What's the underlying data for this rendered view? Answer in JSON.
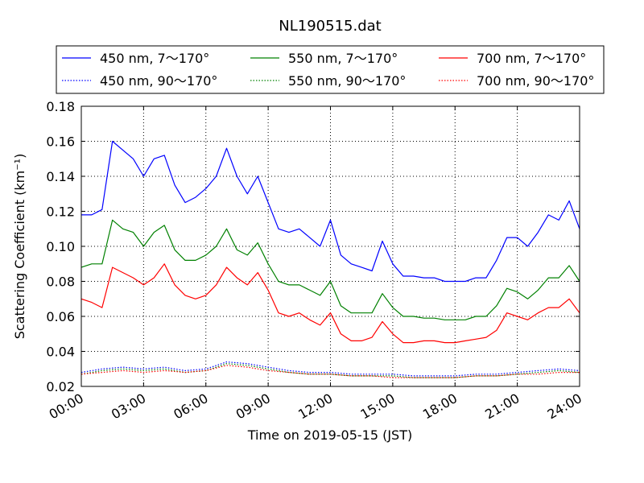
{
  "chart_data": {
    "type": "line",
    "title": "NL190515.dat",
    "xlabel": "Time on 2019-05-15 (JST)",
    "ylabel": "Scattering Coefficient (km⁻¹)",
    "xlim": [
      0,
      24
    ],
    "ylim": [
      0.02,
      0.18
    ],
    "x_ticks": [
      "00:00",
      "03:00",
      "06:00",
      "09:00",
      "12:00",
      "15:00",
      "18:00",
      "21:00",
      "24:00"
    ],
    "y_ticks": [
      "0.02",
      "0.04",
      "0.06",
      "0.08",
      "0.10",
      "0.12",
      "0.14",
      "0.16",
      "0.18"
    ],
    "grid": true,
    "legend_position": "top",
    "series": [
      {
        "name": "450 nm, 7～170°",
        "color": "#0000ff",
        "style": "solid",
        "x": [
          0,
          0.5,
          1,
          1.5,
          2,
          2.5,
          3,
          3.5,
          4,
          4.5,
          5,
          5.5,
          6,
          6.5,
          7,
          7.5,
          8,
          8.5,
          9,
          9.5,
          10,
          10.5,
          11,
          11.5,
          12,
          12.5,
          13,
          13.5,
          14,
          14.5,
          15,
          15.5,
          16,
          16.5,
          17,
          17.5,
          18,
          18.5,
          19,
          19.5,
          20,
          20.5,
          21,
          21.5,
          22,
          22.5,
          23,
          23.5,
          24
        ],
        "values": [
          0.118,
          0.118,
          0.121,
          0.16,
          0.155,
          0.15,
          0.14,
          0.15,
          0.152,
          0.135,
          0.125,
          0.128,
          0.133,
          0.14,
          0.156,
          0.14,
          0.13,
          0.14,
          0.125,
          0.11,
          0.108,
          0.11,
          0.105,
          0.1,
          0.115,
          0.095,
          0.09,
          0.088,
          0.086,
          0.103,
          0.09,
          0.083,
          0.083,
          0.082,
          0.082,
          0.08,
          0.08,
          0.08,
          0.082,
          0.082,
          0.092,
          0.105,
          0.105,
          0.1,
          0.108,
          0.118,
          0.115,
          0.126,
          0.11
        ]
      },
      {
        "name": "550 nm, 7～170°",
        "color": "#008000",
        "style": "solid",
        "x": [
          0,
          0.5,
          1,
          1.5,
          2,
          2.5,
          3,
          3.5,
          4,
          4.5,
          5,
          5.5,
          6,
          6.5,
          7,
          7.5,
          8,
          8.5,
          9,
          9.5,
          10,
          10.5,
          11,
          11.5,
          12,
          12.5,
          13,
          13.5,
          14,
          14.5,
          15,
          15.5,
          16,
          16.5,
          17,
          17.5,
          18,
          18.5,
          19,
          19.5,
          20,
          20.5,
          21,
          21.5,
          22,
          22.5,
          23,
          23.5,
          24
        ],
        "values": [
          0.088,
          0.09,
          0.09,
          0.115,
          0.11,
          0.108,
          0.1,
          0.108,
          0.112,
          0.098,
          0.092,
          0.092,
          0.095,
          0.1,
          0.11,
          0.098,
          0.095,
          0.102,
          0.09,
          0.08,
          0.078,
          0.078,
          0.075,
          0.072,
          0.08,
          0.066,
          0.062,
          0.062,
          0.062,
          0.073,
          0.065,
          0.06,
          0.06,
          0.059,
          0.059,
          0.058,
          0.058,
          0.058,
          0.06,
          0.06,
          0.066,
          0.076,
          0.074,
          0.07,
          0.075,
          0.082,
          0.082,
          0.089,
          0.08
        ]
      },
      {
        "name": "700 nm, 7～170°",
        "color": "#ff0000",
        "style": "solid",
        "x": [
          0,
          0.5,
          1,
          1.5,
          2,
          2.5,
          3,
          3.5,
          4,
          4.5,
          5,
          5.5,
          6,
          6.5,
          7,
          7.5,
          8,
          8.5,
          9,
          9.5,
          10,
          10.5,
          11,
          11.5,
          12,
          12.5,
          13,
          13.5,
          14,
          14.5,
          15,
          15.5,
          16,
          16.5,
          17,
          17.5,
          18,
          18.5,
          19,
          19.5,
          20,
          20.5,
          21,
          21.5,
          22,
          22.5,
          23,
          23.5,
          24
        ],
        "values": [
          0.07,
          0.068,
          0.065,
          0.088,
          0.085,
          0.082,
          0.078,
          0.082,
          0.09,
          0.078,
          0.072,
          0.07,
          0.072,
          0.078,
          0.088,
          0.082,
          0.078,
          0.085,
          0.075,
          0.062,
          0.06,
          0.062,
          0.058,
          0.055,
          0.062,
          0.05,
          0.046,
          0.046,
          0.048,
          0.057,
          0.05,
          0.045,
          0.045,
          0.046,
          0.046,
          0.045,
          0.045,
          0.046,
          0.047,
          0.048,
          0.052,
          0.062,
          0.06,
          0.058,
          0.062,
          0.065,
          0.065,
          0.07,
          0.062
        ]
      },
      {
        "name": "450 nm, 90～170°",
        "color": "#0000ff",
        "style": "dotted",
        "x": [
          0,
          1,
          2,
          3,
          4,
          5,
          6,
          7,
          8,
          9,
          10,
          11,
          12,
          13,
          14,
          15,
          16,
          17,
          18,
          19,
          20,
          21,
          22,
          23,
          24
        ],
        "values": [
          0.028,
          0.03,
          0.031,
          0.03,
          0.031,
          0.029,
          0.03,
          0.034,
          0.033,
          0.031,
          0.029,
          0.028,
          0.028,
          0.027,
          0.027,
          0.027,
          0.026,
          0.026,
          0.026,
          0.027,
          0.027,
          0.028,
          0.029,
          0.03,
          0.029
        ]
      },
      {
        "name": "550 nm, 90～170°",
        "color": "#008000",
        "style": "dotted",
        "x": [
          0,
          1,
          2,
          3,
          4,
          5,
          6,
          7,
          8,
          9,
          10,
          11,
          12,
          13,
          14,
          15,
          16,
          17,
          18,
          19,
          20,
          21,
          22,
          23,
          24
        ],
        "values": [
          0.027,
          0.029,
          0.03,
          0.029,
          0.03,
          0.028,
          0.029,
          0.033,
          0.032,
          0.03,
          0.028,
          0.027,
          0.027,
          0.026,
          0.026,
          0.026,
          0.025,
          0.025,
          0.025,
          0.026,
          0.026,
          0.027,
          0.028,
          0.029,
          0.028
        ]
      },
      {
        "name": "700 nm, 90～170°",
        "color": "#ff0000",
        "style": "dotted",
        "x": [
          0,
          1,
          2,
          3,
          4,
          5,
          6,
          7,
          8,
          9,
          10,
          11,
          12,
          13,
          14,
          15,
          16,
          17,
          18,
          19,
          20,
          21,
          22,
          23,
          24
        ],
        "values": [
          0.027,
          0.028,
          0.029,
          0.028,
          0.029,
          0.028,
          0.029,
          0.032,
          0.031,
          0.029,
          0.028,
          0.027,
          0.027,
          0.026,
          0.026,
          0.025,
          0.025,
          0.025,
          0.025,
          0.026,
          0.026,
          0.027,
          0.027,
          0.028,
          0.028
        ]
      }
    ]
  }
}
